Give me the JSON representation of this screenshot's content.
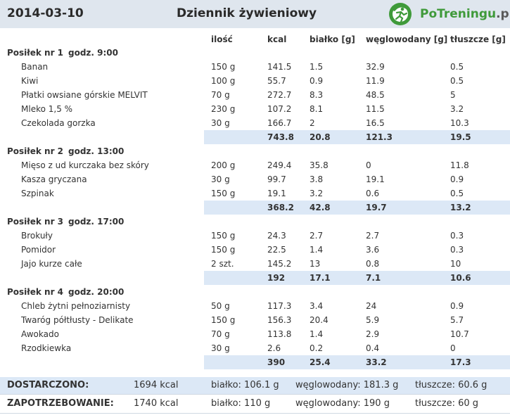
{
  "header": {
    "date": "2014-03-10",
    "title": "Dziennik żywieniowy",
    "logo_text_main": "PoTreningu",
    "logo_text_tld": ".pl",
    "brand_color": "#3f9a3a"
  },
  "columns": {
    "qty": "ilość",
    "kcal": "kcal",
    "protein": "białko [g]",
    "carbs": "węglowodany [g]",
    "fat": "tłuszcze [g]"
  },
  "meals": [
    {
      "label": "Posiłek nr 1",
      "time": "godz. 9:00",
      "items": [
        {
          "name": "Banan",
          "qty": "150 g",
          "kcal": "141.5",
          "protein": "1.5",
          "carbs": "32.9",
          "fat": "0.5"
        },
        {
          "name": "Kiwi",
          "qty": "100 g",
          "kcal": "55.7",
          "protein": "0.9",
          "carbs": "11.9",
          "fat": "0.5"
        },
        {
          "name": "Płatki owsiane górskie MELVIT",
          "qty": "70 g",
          "kcal": "272.7",
          "protein": "8.3",
          "carbs": "48.5",
          "fat": "5"
        },
        {
          "name": "Mleko  1,5 %",
          "qty": "230 g",
          "kcal": "107.2",
          "protein": "8.1",
          "carbs": "11.5",
          "fat": "3.2"
        },
        {
          "name": "Czekolada gorzka",
          "qty": "30 g",
          "kcal": "166.7",
          "protein": "2",
          "carbs": "16.5",
          "fat": "10.3"
        }
      ],
      "total": {
        "kcal": "743.8",
        "protein": "20.8",
        "carbs": "121.3",
        "fat": "19.5"
      }
    },
    {
      "label": "Posiłek nr 2",
      "time": "godz. 13:00",
      "items": [
        {
          "name": "Mięso z ud kurczaka bez skóry",
          "qty": "200 g",
          "kcal": "249.4",
          "protein": "35.8",
          "carbs": "0",
          "fat": "11.8"
        },
        {
          "name": "Kasza gryczana",
          "qty": "30 g",
          "kcal": "99.7",
          "protein": "3.8",
          "carbs": "19.1",
          "fat": "0.9"
        },
        {
          "name": "Szpinak",
          "qty": "150 g",
          "kcal": "19.1",
          "protein": "3.2",
          "carbs": "0.6",
          "fat": "0.5"
        }
      ],
      "total": {
        "kcal": "368.2",
        "protein": "42.8",
        "carbs": "19.7",
        "fat": "13.2"
      }
    },
    {
      "label": "Posiłek nr 3",
      "time": "godz. 17:00",
      "items": [
        {
          "name": "Brokuły",
          "qty": "150 g",
          "kcal": "24.3",
          "protein": "2.7",
          "carbs": "2.7",
          "fat": "0.3"
        },
        {
          "name": "Pomidor",
          "qty": "150 g",
          "kcal": "22.5",
          "protein": "1.4",
          "carbs": "3.6",
          "fat": "0.3"
        },
        {
          "name": "Jajo kurze całe",
          "qty": "2 szt.",
          "kcal": "145.2",
          "protein": "13",
          "carbs": "0.8",
          "fat": "10"
        }
      ],
      "total": {
        "kcal": "192",
        "protein": "17.1",
        "carbs": "7.1",
        "fat": "10.6"
      }
    },
    {
      "label": "Posiłek nr 4",
      "time": "godz. 20:00",
      "items": [
        {
          "name": "Chleb żytni pełnoziarnisty",
          "qty": "50 g",
          "kcal": "117.3",
          "protein": "3.4",
          "carbs": "24",
          "fat": "0.9"
        },
        {
          "name": "Twaróg półtłusty - Delikate",
          "qty": "150 g",
          "kcal": "156.3",
          "protein": "20.4",
          "carbs": "5.9",
          "fat": "5.7"
        },
        {
          "name": "Awokado",
          "qty": "70 g",
          "kcal": "113.8",
          "protein": "1.4",
          "carbs": "2.9",
          "fat": "10.7"
        },
        {
          "name": "Rzodkiewka",
          "qty": "30 g",
          "kcal": "2.6",
          "protein": "0.2",
          "carbs": "0.4",
          "fat": "0"
        }
      ],
      "total": {
        "kcal": "390",
        "protein": "25.4",
        "carbs": "33.2",
        "fat": "17.3"
      }
    }
  ],
  "summary": {
    "delivered": {
      "label": "DOSTARCZONO:",
      "kcal": "1694 kcal",
      "protein": "białko: 106.1 g",
      "carbs": "węglowodany: 181.3 g",
      "fat": "tłuszcze: 60.6 g"
    },
    "required": {
      "label": "ZAPOTRZEBOWANIE:",
      "kcal": "1740 kcal",
      "protein": "białko: 110 g",
      "carbs": "węglowodany: 190 g",
      "fat": "tłuszcze: 60 g"
    }
  }
}
